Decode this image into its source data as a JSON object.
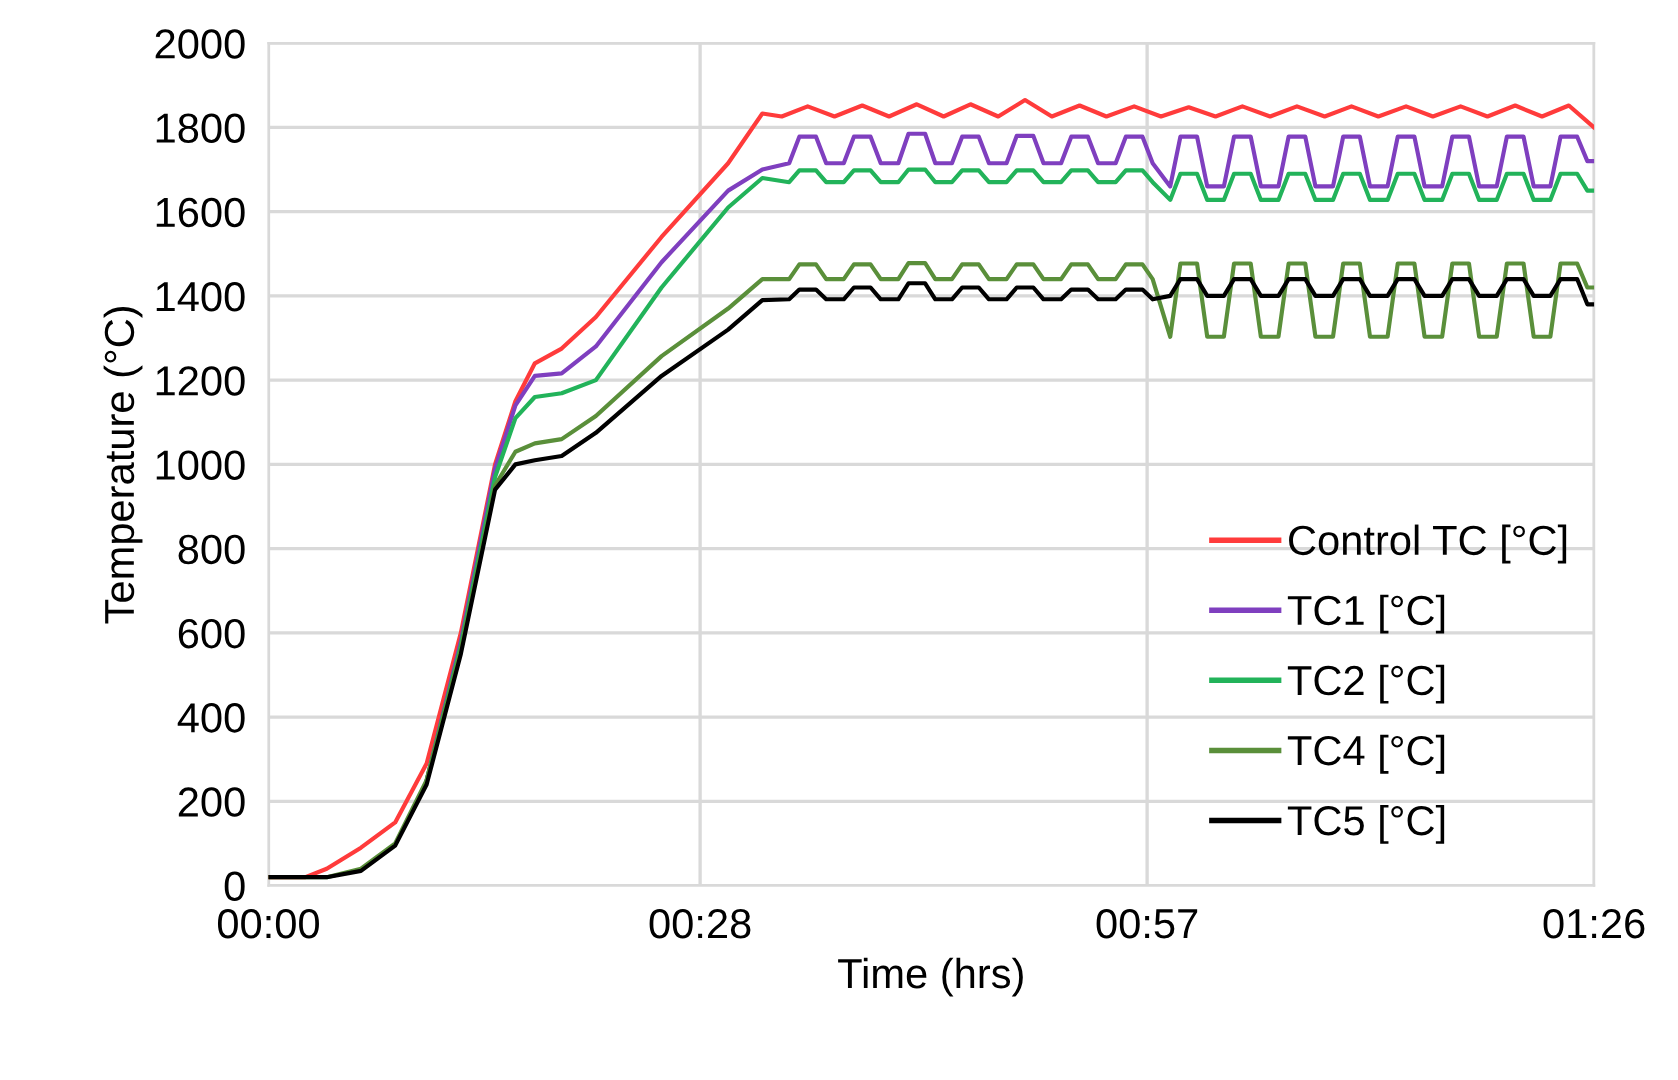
{
  "chart_data": {
    "type": "line",
    "xlabel": "Time (hrs)",
    "ylabel": "Temperature (°C)",
    "xlim": [
      0,
      1.4333
    ],
    "ylim": [
      0,
      2000
    ],
    "xticks": [
      {
        "value": 0,
        "label": "00:00"
      },
      {
        "value": 0.4667,
        "label": "00:28"
      },
      {
        "value": 0.95,
        "label": "00:57"
      },
      {
        "value": 1.4333,
        "label": "01:26"
      }
    ],
    "yticks": [
      0,
      200,
      400,
      600,
      800,
      1000,
      1200,
      1400,
      1600,
      1800,
      2000
    ],
    "grid": true,
    "legend": "right",
    "line_style": "solid",
    "marker": "none",
    "series": [
      {
        "name": "Control TC [°C]",
        "color": "#ff3b3b",
        "x": [
          0,
          0.04,
          0.063,
          0.1,
          0.137,
          0.171,
          0.208,
          0.245,
          0.267,
          0.288,
          0.317,
          0.354,
          0.425,
          0.497,
          0.534,
          0.555,
          0.583,
          0.612,
          0.642,
          0.671,
          0.701,
          0.73,
          0.759,
          0.789,
          0.818,
          0.847,
          0.877,
          0.906,
          0.936,
          0.965,
          0.995,
          1.024,
          1.053,
          1.083,
          1.112,
          1.142,
          1.171,
          1.2,
          1.23,
          1.259,
          1.289,
          1.318,
          1.348,
          1.377,
          1.406,
          1.4333
        ],
        "values": [
          20,
          20,
          40,
          90,
          150,
          290,
          600,
          1000,
          1150,
          1240,
          1275,
          1350,
          1540,
          1715,
          1833,
          1826,
          1850,
          1826,
          1852,
          1826,
          1855,
          1826,
          1855,
          1826,
          1865,
          1826,
          1852,
          1826,
          1850,
          1826,
          1848,
          1826,
          1850,
          1826,
          1850,
          1826,
          1850,
          1826,
          1850,
          1826,
          1850,
          1826,
          1852,
          1826,
          1852,
          1800
        ]
      },
      {
        "name": "TC1 [°C]",
        "color": "#7f3fbf",
        "x": [
          0.171,
          0.208,
          0.245,
          0.267,
          0.288,
          0.317,
          0.354,
          0.425,
          0.497,
          0.534,
          0.563,
          0.574,
          0.592,
          0.603,
          0.622,
          0.633,
          0.651,
          0.662,
          0.681,
          0.692,
          0.71,
          0.721,
          0.739,
          0.75,
          0.768,
          0.779,
          0.798,
          0.809,
          0.827,
          0.838,
          0.857,
          0.868,
          0.886,
          0.897,
          0.916,
          0.927,
          0.945,
          0.956,
          0.975,
          0.986,
          1.004,
          1.015,
          1.033,
          1.044,
          1.062,
          1.073,
          1.092,
          1.103,
          1.121,
          1.132,
          1.151,
          1.162,
          1.18,
          1.191,
          1.21,
          1.221,
          1.239,
          1.25,
          1.269,
          1.28,
          1.298,
          1.309,
          1.328,
          1.339,
          1.357,
          1.368,
          1.386,
          1.397,
          1.415,
          1.426,
          1.4333
        ],
        "values": [
          250,
          580,
          990,
          1140,
          1210,
          1216,
          1280,
          1480,
          1650,
          1700,
          1715,
          1778,
          1778,
          1715,
          1715,
          1778,
          1778,
          1715,
          1715,
          1785,
          1785,
          1715,
          1715,
          1778,
          1778,
          1715,
          1715,
          1780,
          1780,
          1715,
          1715,
          1778,
          1778,
          1715,
          1715,
          1778,
          1778,
          1715,
          1660,
          1778,
          1778,
          1660,
          1660,
          1778,
          1778,
          1660,
          1660,
          1778,
          1778,
          1660,
          1660,
          1778,
          1778,
          1660,
          1660,
          1778,
          1778,
          1660,
          1660,
          1778,
          1778,
          1660,
          1660,
          1778,
          1778,
          1660,
          1660,
          1778,
          1778,
          1720,
          1720
        ]
      },
      {
        "name": "TC2 [°C]",
        "color": "#22b35a",
        "x": [
          0.171,
          0.208,
          0.245,
          0.267,
          0.288,
          0.317,
          0.354,
          0.425,
          0.497,
          0.534,
          0.563,
          0.574,
          0.592,
          0.603,
          0.622,
          0.633,
          0.651,
          0.662,
          0.681,
          0.692,
          0.71,
          0.721,
          0.739,
          0.75,
          0.768,
          0.779,
          0.798,
          0.809,
          0.827,
          0.838,
          0.857,
          0.868,
          0.886,
          0.897,
          0.916,
          0.927,
          0.945,
          0.956,
          0.975,
          0.986,
          1.004,
          1.015,
          1.033,
          1.044,
          1.062,
          1.073,
          1.092,
          1.103,
          1.121,
          1.132,
          1.151,
          1.162,
          1.18,
          1.191,
          1.21,
          1.221,
          1.239,
          1.25,
          1.269,
          1.28,
          1.298,
          1.309,
          1.328,
          1.339,
          1.357,
          1.368,
          1.386,
          1.397,
          1.415,
          1.426,
          1.4333
        ],
        "values": [
          250,
          570,
          970,
          1110,
          1160,
          1169,
          1200,
          1420,
          1610,
          1680,
          1670,
          1698,
          1698,
          1670,
          1670,
          1698,
          1698,
          1670,
          1670,
          1700,
          1700,
          1670,
          1670,
          1698,
          1698,
          1670,
          1670,
          1698,
          1698,
          1670,
          1670,
          1698,
          1698,
          1670,
          1670,
          1698,
          1698,
          1670,
          1628,
          1690,
          1690,
          1628,
          1628,
          1690,
          1690,
          1628,
          1628,
          1690,
          1690,
          1628,
          1628,
          1690,
          1690,
          1628,
          1628,
          1690,
          1690,
          1628,
          1628,
          1690,
          1690,
          1628,
          1628,
          1690,
          1690,
          1628,
          1628,
          1690,
          1690,
          1650,
          1650
        ]
      },
      {
        "name": "TC4 [°C]",
        "color": "#5a8f3a",
        "x": [
          0,
          0.04,
          0.063,
          0.1,
          0.137,
          0.171,
          0.208,
          0.245,
          0.267,
          0.288,
          0.317,
          0.354,
          0.425,
          0.497,
          0.534,
          0.563,
          0.574,
          0.592,
          0.603,
          0.622,
          0.633,
          0.651,
          0.662,
          0.681,
          0.692,
          0.71,
          0.721,
          0.739,
          0.75,
          0.768,
          0.779,
          0.798,
          0.809,
          0.827,
          0.838,
          0.857,
          0.868,
          0.886,
          0.897,
          0.916,
          0.927,
          0.945,
          0.956,
          0.975,
          0.986,
          1.004,
          1.015,
          1.033,
          1.044,
          1.062,
          1.073,
          1.092,
          1.103,
          1.121,
          1.132,
          1.151,
          1.162,
          1.18,
          1.191,
          1.21,
          1.221,
          1.239,
          1.25,
          1.269,
          1.28,
          1.298,
          1.309,
          1.328,
          1.339,
          1.357,
          1.368,
          1.386,
          1.397,
          1.415,
          1.426,
          1.4333
        ],
        "values": [
          20,
          20,
          20,
          40,
          100,
          250,
          560,
          950,
          1030,
          1050,
          1060,
          1115,
          1257,
          1370,
          1440,
          1440,
          1475,
          1475,
          1440,
          1440,
          1475,
          1475,
          1440,
          1440,
          1478,
          1478,
          1440,
          1440,
          1475,
          1475,
          1440,
          1440,
          1475,
          1475,
          1440,
          1440,
          1475,
          1475,
          1440,
          1440,
          1475,
          1475,
          1440,
          1303,
          1477,
          1477,
          1303,
          1303,
          1477,
          1477,
          1303,
          1303,
          1477,
          1477,
          1303,
          1303,
          1477,
          1477,
          1303,
          1303,
          1477,
          1477,
          1303,
          1303,
          1477,
          1477,
          1303,
          1303,
          1477,
          1477,
          1303,
          1303,
          1477,
          1477,
          1420,
          1420
        ]
      },
      {
        "name": "TC5 [°C]",
        "color": "#000000",
        "x": [
          0,
          0.04,
          0.063,
          0.1,
          0.137,
          0.171,
          0.208,
          0.245,
          0.267,
          0.288,
          0.317,
          0.354,
          0.425,
          0.497,
          0.534,
          0.563,
          0.574,
          0.592,
          0.603,
          0.622,
          0.633,
          0.651,
          0.662,
          0.681,
          0.692,
          0.71,
          0.721,
          0.739,
          0.75,
          0.768,
          0.779,
          0.798,
          0.809,
          0.827,
          0.838,
          0.857,
          0.868,
          0.886,
          0.897,
          0.916,
          0.927,
          0.945,
          0.956,
          0.975,
          0.986,
          1.004,
          1.015,
          1.033,
          1.044,
          1.062,
          1.073,
          1.092,
          1.103,
          1.121,
          1.132,
          1.151,
          1.162,
          1.18,
          1.191,
          1.21,
          1.221,
          1.239,
          1.25,
          1.269,
          1.28,
          1.298,
          1.309,
          1.328,
          1.339,
          1.357,
          1.368,
          1.386,
          1.397,
          1.415,
          1.426,
          1.4333
        ],
        "values": [
          20,
          20,
          20,
          35,
          95,
          240,
          550,
          940,
          1000,
          1010,
          1020,
          1075,
          1210,
          1320,
          1390,
          1392,
          1415,
          1415,
          1392,
          1392,
          1420,
          1420,
          1392,
          1392,
          1430,
          1430,
          1392,
          1392,
          1420,
          1420,
          1392,
          1392,
          1420,
          1420,
          1392,
          1392,
          1415,
          1415,
          1392,
          1392,
          1415,
          1415,
          1392,
          1400,
          1440,
          1440,
          1400,
          1400,
          1440,
          1440,
          1400,
          1400,
          1440,
          1440,
          1400,
          1400,
          1440,
          1440,
          1400,
          1400,
          1440,
          1440,
          1400,
          1400,
          1440,
          1440,
          1400,
          1400,
          1440,
          1440,
          1400,
          1400,
          1440,
          1440,
          1380,
          1380
        ]
      }
    ]
  }
}
